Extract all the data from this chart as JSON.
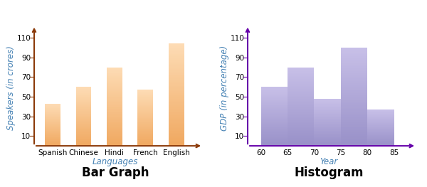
{
  "bar_categories": [
    "Spanish",
    "Chinese",
    "Hindi",
    "French",
    "English"
  ],
  "bar_values": [
    43,
    60,
    80,
    57,
    104
  ],
  "bar_color_top": "#FDDCB5",
  "bar_color_bottom": "#F0A860",
  "bar_yticks": [
    10,
    30,
    50,
    70,
    90,
    110
  ],
  "bar_ylabel": "Speakers (in crores)",
  "bar_xlabel": "Languages",
  "bar_title": "Bar Graph",
  "bar_axis_color": "#8B3A0A",
  "bar_label_color": "#4682B4",
  "bar_ylim": [
    0,
    118
  ],
  "hist_bin_edges": [
    60,
    65,
    70,
    75,
    80,
    85
  ],
  "hist_values": [
    60,
    80,
    48,
    100,
    37
  ],
  "hist_color_top": "#C8C0E8",
  "hist_color_bottom": "#9890C8",
  "hist_yticks": [
    10,
    30,
    50,
    70,
    90,
    110
  ],
  "hist_ylabel": "GDP (in percentage)",
  "hist_xlabel": "Year",
  "hist_title": "Histogram",
  "hist_axis_color": "#6600AA",
  "hist_label_color": "#4682B4",
  "hist_ylim": [
    0,
    118
  ],
  "hist_xticks": [
    60,
    65,
    70,
    75,
    80,
    85
  ],
  "title_fontsize": 12,
  "axis_label_fontsize": 8.5,
  "tick_fontsize": 7.5,
  "background_color": "#ffffff"
}
